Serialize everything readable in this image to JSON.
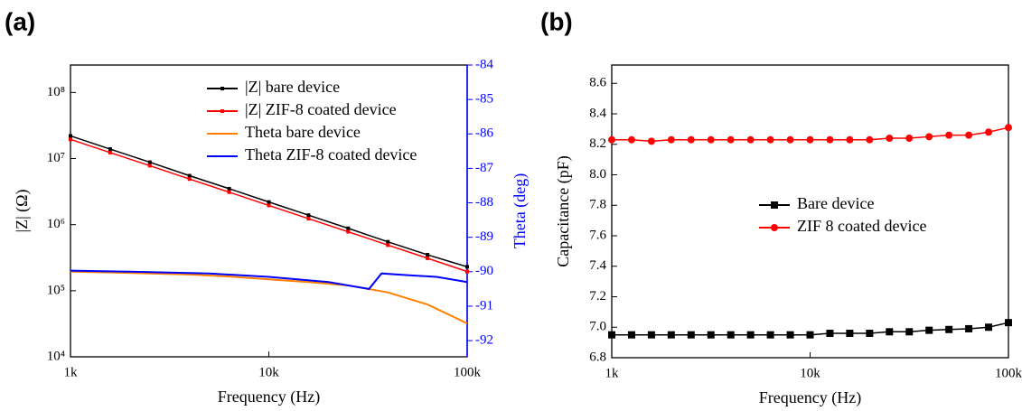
{
  "chart_data": [
    {
      "type": "line",
      "panel_label": "(a)",
      "xlabel": "Frequency (Hz)",
      "ylabel": "|Z| (Ω)",
      "y2label": "Theta (deg)",
      "xlog": true,
      "ylog": true,
      "legend": "upper right",
      "y2_color": "#0000ff",
      "xlim": [
        1000,
        100000
      ],
      "xticks": [
        {
          "value": 1000,
          "label": "1k"
        },
        {
          "value": 10000,
          "label": "10k"
        },
        {
          "value": 100000,
          "label": "100k"
        }
      ],
      "ylim": [
        10000,
        260000000
      ],
      "yticks": [
        {
          "value": 10000,
          "label": "10⁴"
        },
        {
          "value": 100000,
          "label": "10⁵"
        },
        {
          "value": 1000000,
          "label": "10⁶"
        },
        {
          "value": 10000000,
          "label": "10⁷"
        },
        {
          "value": 100000000,
          "label": "10⁸"
        }
      ],
      "y2lim": [
        -92.47,
        -84
      ],
      "y2ticks": [
        -92,
        -91,
        -90,
        -89,
        -88,
        -87,
        -86,
        -85,
        -84
      ],
      "series": [
        {
          "name": "|Z| bare device",
          "color": "#000000",
          "marker": "square",
          "x": [
            1000,
            1585,
            2512,
            3981,
            6310,
            10000,
            15849,
            25119,
            39811,
            63096,
            100000
          ],
          "values": [
            22000000,
            13900000,
            8800000,
            5500000,
            3500000,
            2200000,
            1390000,
            880000,
            550000,
            350000,
            230000
          ]
        },
        {
          "name": "|Z| ZIF-8 coated device",
          "color": "#ff0000",
          "marker": "square",
          "x": [
            1000,
            1585,
            2512,
            3981,
            6310,
            10000,
            15849,
            25119,
            39811,
            63096,
            100000
          ],
          "values": [
            19500000,
            12300000,
            7800000,
            4900000,
            3100000,
            1950000,
            1230000,
            780000,
            490000,
            310000,
            195000
          ]
        },
        {
          "name": "Theta bare device",
          "color": "#ff8000",
          "axis": "y2",
          "x": [
            1000,
            1585,
            2512,
            3981,
            6310,
            10000,
            15849,
            25119,
            39811,
            63096,
            100000
          ],
          "values": [
            -90.0,
            -90.02,
            -90.05,
            -90.08,
            -90.14,
            -90.22,
            -90.3,
            -90.4,
            -90.6,
            -90.95,
            -91.5
          ]
        },
        {
          "name": "Theta ZIF-8 coated device",
          "color": "#0000ff",
          "axis": "y2",
          "x": [
            1000,
            2000,
            5000,
            10000,
            20000,
            32000,
            37000,
            50000,
            70000,
            100000
          ],
          "values": [
            -89.97,
            -90.0,
            -90.05,
            -90.15,
            -90.3,
            -90.5,
            -90.05,
            -90.1,
            -90.15,
            -90.3
          ]
        }
      ]
    },
    {
      "type": "line",
      "panel_label": "(b)",
      "xlabel": "Frequency (Hz)",
      "ylabel": "Capacitance (pF)",
      "xlog": true,
      "legend": "center right",
      "xlim": [
        1000,
        100000
      ],
      "xticks": [
        {
          "value": 1000,
          "label": "1k"
        },
        {
          "value": 10000,
          "label": "10k"
        },
        {
          "value": 100000,
          "label": "100k"
        }
      ],
      "ylim": [
        6.8,
        8.72
      ],
      "yticks": [
        6.8,
        {
          "value": 7,
          "label": "7.0"
        },
        7.2,
        7.4,
        7.6,
        7.8,
        {
          "value": 8,
          "label": "8.0"
        },
        8.2,
        8.4,
        8.6
      ],
      "series": [
        {
          "name": "Bare device",
          "color": "#000000",
          "marker": "square",
          "x": [
            1000,
            1259,
            1585,
            1995,
            2512,
            3162,
            3981,
            5012,
            6310,
            7943,
            10000,
            12589,
            15849,
            19953,
            25119,
            31623,
            39811,
            50119,
            63096,
            79433,
            100000
          ],
          "values": [
            6.95,
            6.95,
            6.95,
            6.95,
            6.95,
            6.95,
            6.95,
            6.95,
            6.95,
            6.95,
            6.95,
            6.96,
            6.96,
            6.96,
            6.97,
            6.97,
            6.98,
            6.985,
            6.99,
            7.0,
            7.03
          ]
        },
        {
          "name": "ZIF 8 coated device",
          "color": "#ff0000",
          "marker": "circle",
          "x": [
            1000,
            1259,
            1585,
            1995,
            2512,
            3162,
            3981,
            5012,
            6310,
            7943,
            10000,
            12589,
            15849,
            19953,
            25119,
            31623,
            39811,
            50119,
            63096,
            79433,
            100000
          ],
          "values": [
            8.23,
            8.23,
            8.22,
            8.23,
            8.23,
            8.23,
            8.23,
            8.23,
            8.23,
            8.23,
            8.23,
            8.23,
            8.23,
            8.23,
            8.24,
            8.24,
            8.25,
            8.26,
            8.26,
            8.28,
            8.31
          ]
        }
      ]
    }
  ]
}
